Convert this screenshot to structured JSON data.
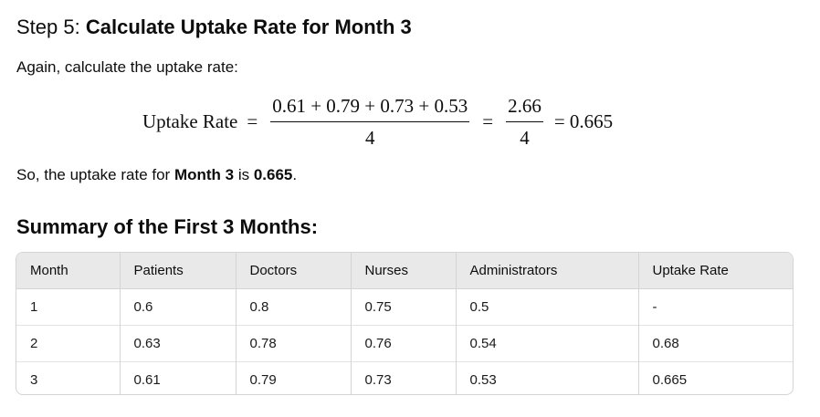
{
  "step": {
    "prefix": "Step 5: ",
    "title": "Calculate Uptake Rate for Month 3"
  },
  "intro_text": "Again, calculate the uptake rate:",
  "formula": {
    "lhs": "Uptake Rate",
    "eq": "=",
    "numerator": "0.61 + 0.79 + 0.73 + 0.53",
    "denominator": "4",
    "simplified_numerator": "2.66",
    "simplified_denominator": "4",
    "result": "= 0.665"
  },
  "conclusion": {
    "pre": "So, the uptake rate for ",
    "month": "Month 3",
    "mid": " is ",
    "value": "0.665",
    "end": "."
  },
  "summary_title": "Summary of the First 3 Months:",
  "table": {
    "headers": [
      "Month",
      "Patients",
      "Doctors",
      "Nurses",
      "Administrators",
      "Uptake Rate"
    ],
    "rows": [
      [
        "1",
        "0.6",
        "0.8",
        "0.75",
        "0.5",
        "-"
      ],
      [
        "2",
        "0.63",
        "0.78",
        "0.76",
        "0.54",
        "0.68"
      ],
      [
        "3",
        "0.61",
        "0.79",
        "0.73",
        "0.53",
        "0.665"
      ]
    ]
  }
}
